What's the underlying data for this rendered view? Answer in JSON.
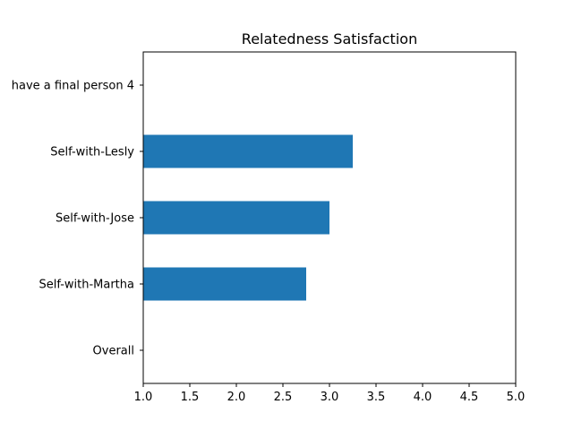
{
  "chart_data": {
    "type": "bar",
    "orientation": "horizontal",
    "title": "Relatedness Satisfaction",
    "xlabel": "",
    "ylabel": "",
    "categories": [
      "Overall",
      "Self-with-Martha",
      "Self-with-Jose",
      "Self-with-Lesly",
      "have a final person 4"
    ],
    "values": [
      null,
      2.75,
      3.0,
      3.25,
      null
    ],
    "xlim": [
      1.0,
      5.0
    ],
    "xticks": [
      "1.0",
      "1.5",
      "2.0",
      "2.5",
      "3.0",
      "3.5",
      "4.0",
      "4.5",
      "5.0"
    ],
    "grid": false,
    "legend": "none",
    "bar_color": "#1f77b4"
  }
}
